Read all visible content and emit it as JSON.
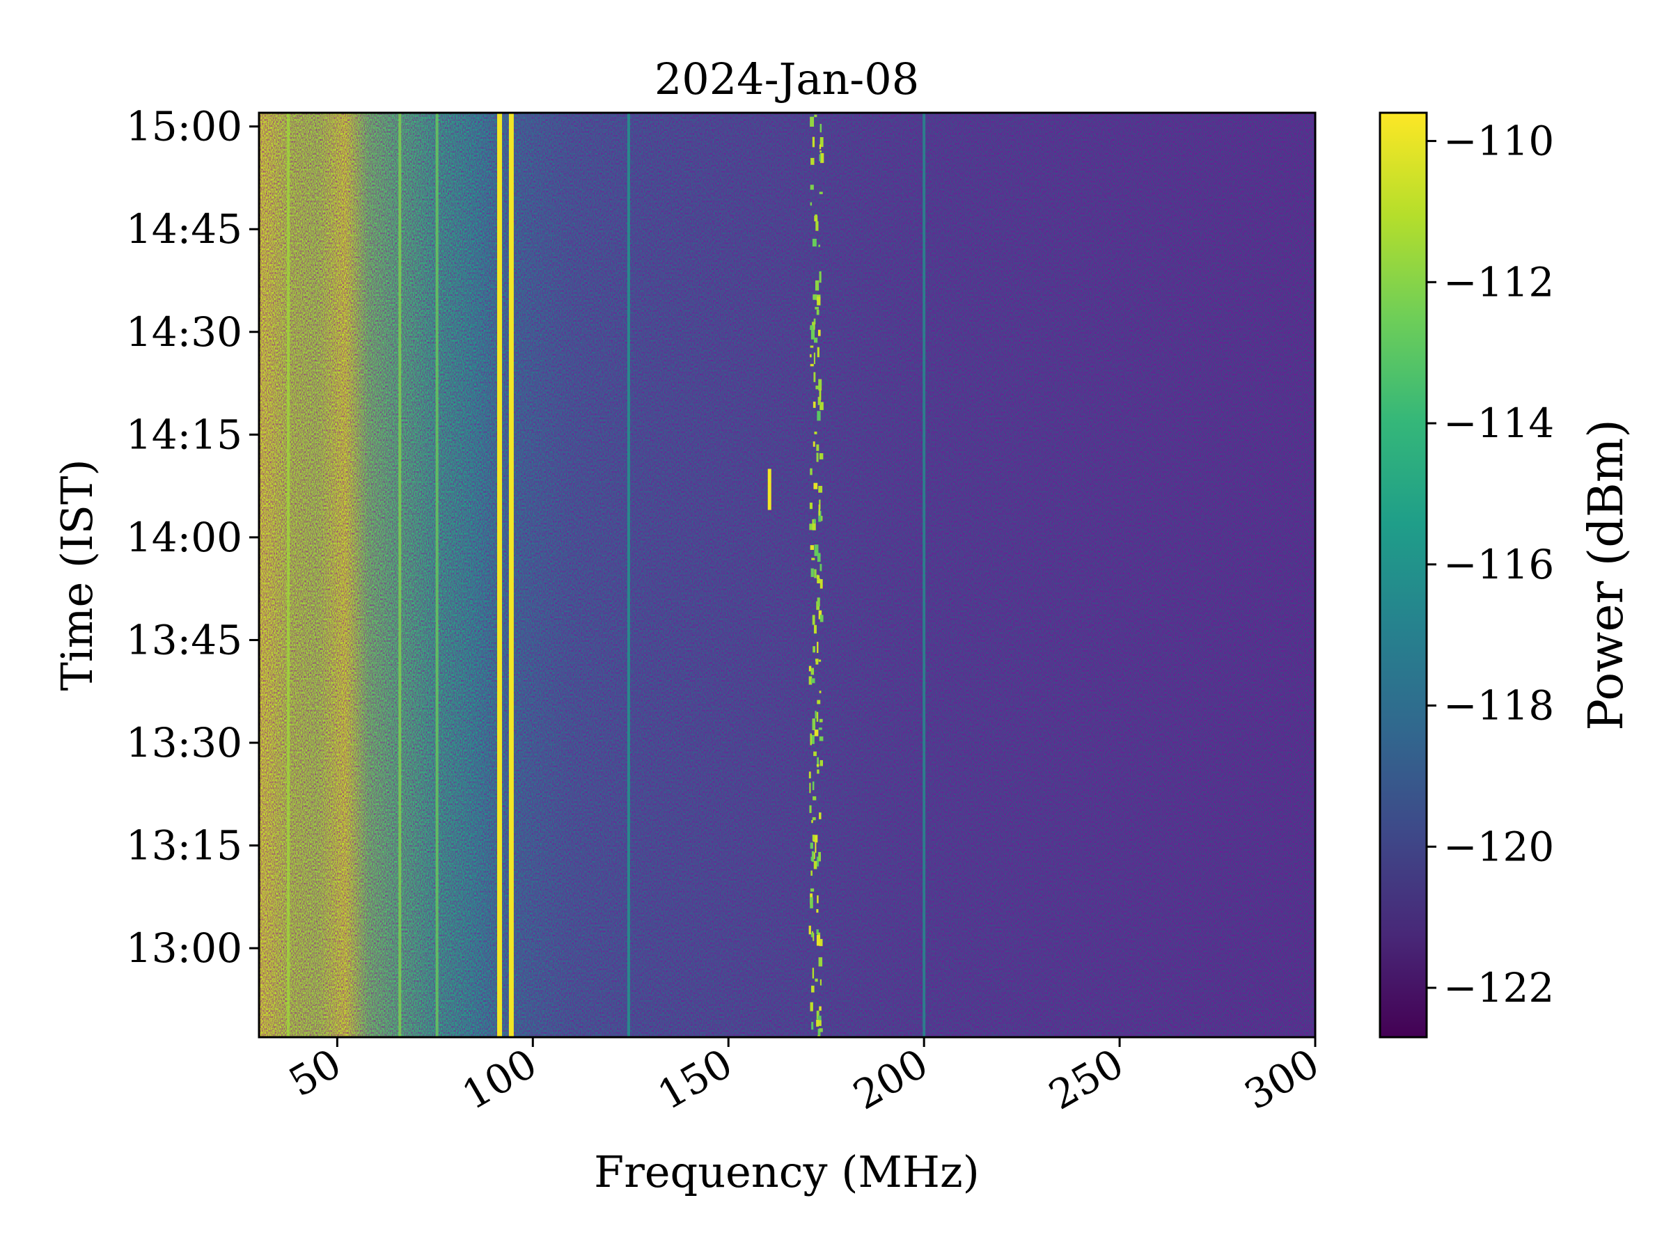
{
  "chart_data": {
    "type": "heatmap",
    "title": "2024-Jan-08",
    "xlabel": "Frequency (MHz)",
    "ylabel": "Time (IST)",
    "colorbar_label": "Power (dBm)",
    "colormap": "viridis",
    "colormap_stops": [
      "#440154",
      "#482878",
      "#3e4989",
      "#31688e",
      "#26828e",
      "#1f9e89",
      "#35b779",
      "#6ece58",
      "#b5de2b",
      "#fde725"
    ],
    "xlim": [
      30,
      300
    ],
    "ylim": [
      "12:47",
      "15:02"
    ],
    "clim": [
      -122.7,
      -109.6
    ],
    "x_ticks": [
      {
        "value": 50,
        "label": "50"
      },
      {
        "value": 100,
        "label": "100"
      },
      {
        "value": 150,
        "label": "150"
      },
      {
        "value": 200,
        "label": "200"
      },
      {
        "value": 250,
        "label": "250"
      },
      {
        "value": 300,
        "label": "300"
      }
    ],
    "y_ticks": [
      {
        "value": "13:00",
        "label": "13:00"
      },
      {
        "value": "13:15",
        "label": "13:15"
      },
      {
        "value": "13:30",
        "label": "13:30"
      },
      {
        "value": "13:45",
        "label": "13:45"
      },
      {
        "value": "14:00",
        "label": "14:00"
      },
      {
        "value": "14:15",
        "label": "14:15"
      },
      {
        "value": "14:30",
        "label": "14:30"
      },
      {
        "value": "14:45",
        "label": "14:45"
      },
      {
        "value": "15:00",
        "label": "15:00"
      }
    ],
    "colorbar_ticks": [
      {
        "value": -110,
        "label": "−110"
      },
      {
        "value": -112,
        "label": "−112"
      },
      {
        "value": -114,
        "label": "−114"
      },
      {
        "value": -116,
        "label": "−116"
      },
      {
        "value": -118,
        "label": "−118"
      },
      {
        "value": -120,
        "label": "−120"
      },
      {
        "value": -122,
        "label": "−122"
      }
    ],
    "background_profile": [
      {
        "freq": 30,
        "power": -110.6
      },
      {
        "freq": 38,
        "power": -111.4
      },
      {
        "freq": 45,
        "power": -111.6
      },
      {
        "freq": 52,
        "power": -110.8
      },
      {
        "freq": 58,
        "power": -112.8
      },
      {
        "freq": 66,
        "power": -113.6
      },
      {
        "freq": 75,
        "power": -114.6
      },
      {
        "freq": 85,
        "power": -115.6
      },
      {
        "freq": 95,
        "power": -117.2
      },
      {
        "freq": 110,
        "power": -118.2
      },
      {
        "freq": 130,
        "power": -118.6
      },
      {
        "freq": 160,
        "power": -119.0
      },
      {
        "freq": 200,
        "power": -119.5
      },
      {
        "freq": 250,
        "power": -119.8
      },
      {
        "freq": 300,
        "power": -120.0
      }
    ],
    "persistent_lines": [
      {
        "freq": 37.5,
        "power": -111.5
      },
      {
        "freq": 66,
        "power": -112.0
      },
      {
        "freq": 75.5,
        "power": -112.5
      },
      {
        "freq": 91.5,
        "power": -109.8
      },
      {
        "freq": 94.5,
        "power": -109.8
      },
      {
        "freq": 124.5,
        "power": -115.5
      },
      {
        "freq": 200,
        "power": -116.0
      }
    ],
    "intermittent_band": {
      "freq_start": 170.5,
      "freq_end": 173.5,
      "power": -110.0
    },
    "transient": {
      "freq": 160.5,
      "time_start": "14:04",
      "time_end": "14:10",
      "power": -109.8
    }
  }
}
